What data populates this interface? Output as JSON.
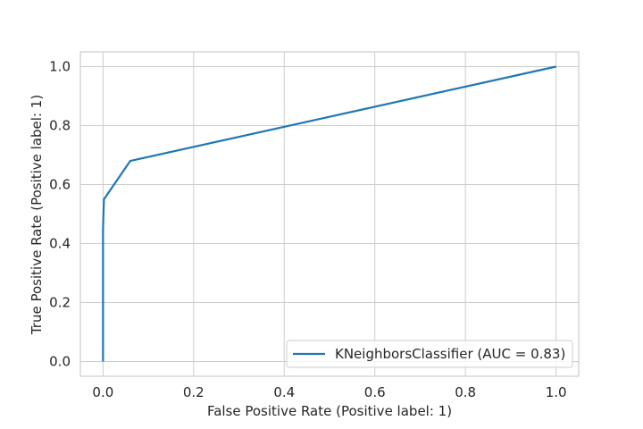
{
  "chart_data": {
    "type": "line",
    "title": "",
    "xlabel": "False Positive Rate (Positive label: 1)",
    "ylabel": "True Positive Rate (Positive label: 1)",
    "xlim": [
      -0.05,
      1.05
    ],
    "ylim": [
      -0.05,
      1.05
    ],
    "xticks": [
      0.0,
      0.2,
      0.4,
      0.6,
      0.8,
      1.0
    ],
    "yticks": [
      0.0,
      0.2,
      0.4,
      0.6,
      0.8,
      1.0
    ],
    "xtick_labels": [
      "0.0",
      "0.2",
      "0.4",
      "0.6",
      "0.8",
      "1.0"
    ],
    "ytick_labels": [
      "0.0",
      "0.2",
      "0.4",
      "0.6",
      "0.8",
      "1.0"
    ],
    "grid": true,
    "legend_position": "lower-right",
    "series": [
      {
        "name": "KNeighborsClassifier (AUC = 0.83)",
        "color": "#1f77b4",
        "x": [
          0.0,
          0.0,
          0.0,
          0.0,
          0.0,
          0.002,
          0.06,
          1.0
        ],
        "y": [
          0.0,
          0.12,
          0.25,
          0.34,
          0.45,
          0.55,
          0.68,
          1.0
        ]
      }
    ]
  }
}
